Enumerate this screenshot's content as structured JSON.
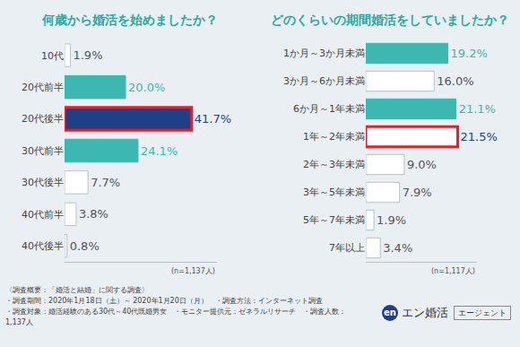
{
  "chart_data": [
    {
      "type": "bar",
      "orientation": "horizontal",
      "title": "何歳から婚活を始めましたか？",
      "categories": [
        "10代",
        "20代前半",
        "20代後半",
        "30代前半",
        "30代後半",
        "40代前半",
        "40代後半"
      ],
      "values": [
        1.9,
        20.0,
        41.7,
        24.1,
        7.7,
        3.8,
        0.8
      ],
      "value_labels": [
        "1.9%",
        "20.0%",
        "41.7%",
        "24.1%",
        "7.7%",
        "3.8%",
        "0.8%"
      ],
      "colors": [
        "#ffffff",
        "#3cb8b0",
        "#1f3f86",
        "#3cb8b0",
        "#ffffff",
        "#ffffff",
        "#ffffff"
      ],
      "xlim": [
        0,
        50
      ],
      "data_labels": true,
      "tick_labels": "y",
      "annotation": "(n=1,137人)"
    },
    {
      "type": "bar",
      "orientation": "horizontal",
      "title": "どのくらいの期間婚活をしていましたか？",
      "categories": [
        "1か月～3か月未満",
        "3か月～6か月未満",
        "6か月～1年未満",
        "1年～2年未満",
        "2年～3年未満",
        "3年～5年未満",
        "5年～7年未満",
        "7年以上"
      ],
      "values": [
        19.2,
        16.0,
        21.1,
        21.5,
        9.0,
        7.9,
        1.9,
        3.4
      ],
      "value_labels": [
        "19.2%",
        "16.0%",
        "21.1%",
        "21.5%",
        "9.0%",
        "7.9%",
        "1.9%",
        "3.4%"
      ],
      "colors": [
        "#3cb8b0",
        "#ffffff",
        "#3cb8b0",
        "#ffffff",
        "#ffffff",
        "#ffffff",
        "#ffffff",
        "#ffffff"
      ],
      "xlim": [
        0,
        26
      ],
      "data_labels": true,
      "tick_labels": "y",
      "annotation": "(n=1,117人)"
    }
  ],
  "footer": {
    "heading": "〈調査概要：「婚活と結婚」に関する調査〉",
    "lines": [
      "・調査期間：2020年1月18日（土）～ 2020年1月20日（月）　・調査方法：インターネット調査",
      "・調査対象：婚活経験のある30代～40代既婚男女　・モニター提供元：ゼネラルリサーチ　・調査人数：1,137人"
    ]
  },
  "brand": {
    "logo": "en",
    "name": "エン婚活",
    "tag": "エージェント"
  }
}
